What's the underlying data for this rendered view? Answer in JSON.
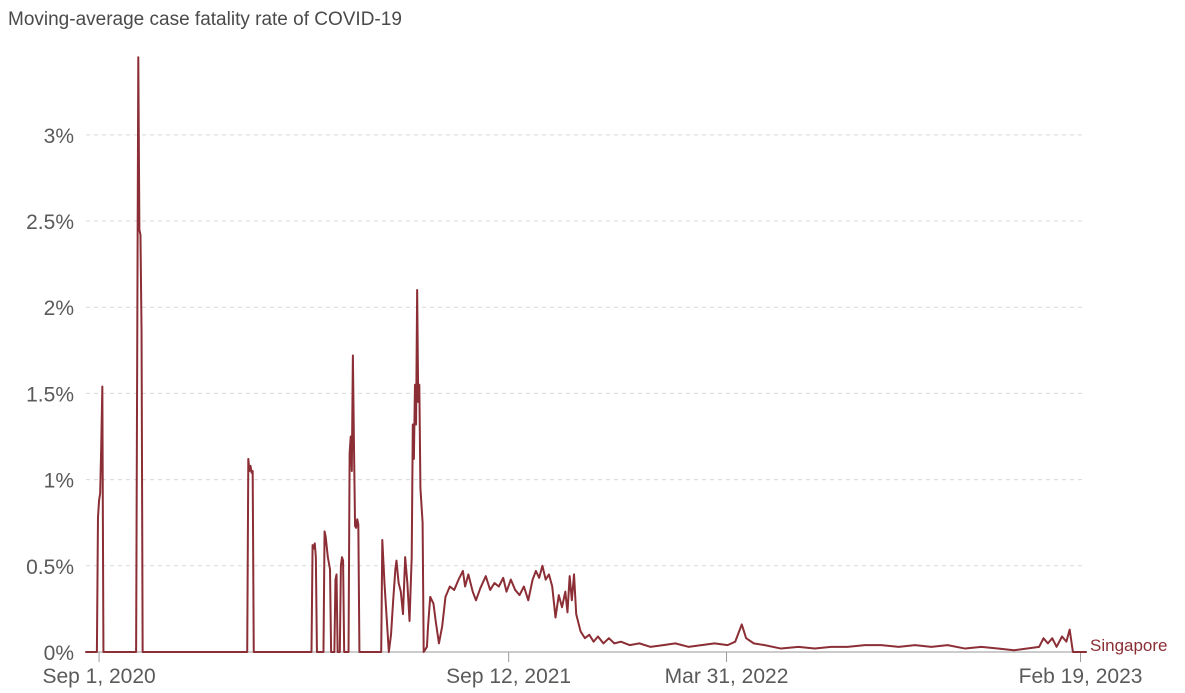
{
  "chart_data": {
    "type": "line",
    "title": "Moving-average case fatality rate of COVID-19",
    "xlabel": "",
    "ylabel": "",
    "x_range": [
      "2020-08-20",
      "2023-02-24"
    ],
    "ylim": [
      0,
      3.55
    ],
    "y_ticks": [
      0,
      0.5,
      1,
      1.5,
      2,
      2.5,
      3
    ],
    "y_tick_labels": [
      "0%",
      "0.5%",
      "1%",
      "1.5%",
      "2%",
      "2.5%",
      "3%"
    ],
    "x_ticks": [
      "2020-09-01",
      "2021-09-12",
      "2022-03-31",
      "2023-02-19"
    ],
    "x_tick_labels": [
      "Sep 1, 2020",
      "Sep 12, 2021",
      "Mar 31, 2022",
      "Feb 19, 2023"
    ],
    "grid": true,
    "colors": {
      "series": "#8b2e35",
      "grid": "#d9d9d9",
      "text": "#5a5a5a"
    },
    "series": [
      {
        "name": "Singapore",
        "points": [
          [
            "2020-08-20",
            0
          ],
          [
            "2020-08-30",
            0
          ],
          [
            "2020-08-31",
            0.78
          ],
          [
            "2020-09-01",
            0.88
          ],
          [
            "2020-09-02",
            0.92
          ],
          [
            "2020-09-03",
            1.2
          ],
          [
            "2020-09-04",
            1.54
          ],
          [
            "2020-09-05",
            0
          ],
          [
            "2020-10-05",
            0
          ],
          [
            "2020-10-07",
            3.45
          ],
          [
            "2020-10-08",
            2.45
          ],
          [
            "2020-10-09",
            2.42
          ],
          [
            "2020-10-10",
            1.85
          ],
          [
            "2020-10-11",
            0
          ],
          [
            "2021-01-15",
            0
          ],
          [
            "2021-01-16",
            1.12
          ],
          [
            "2021-01-17",
            1.05
          ],
          [
            "2021-01-18",
            1.08
          ],
          [
            "2021-01-19",
            1.04
          ],
          [
            "2021-01-20",
            1.05
          ],
          [
            "2021-01-21",
            0
          ],
          [
            "2021-03-15",
            0
          ],
          [
            "2021-03-16",
            0.62
          ],
          [
            "2021-03-17",
            0.6
          ],
          [
            "2021-03-18",
            0.63
          ],
          [
            "2021-03-19",
            0.55
          ],
          [
            "2021-03-20",
            0
          ],
          [
            "2021-03-26",
            0
          ],
          [
            "2021-03-27",
            0.7
          ],
          [
            "2021-03-28",
            0.67
          ],
          [
            "2021-03-30",
            0.55
          ],
          [
            "2021-04-01",
            0.48
          ],
          [
            "2021-04-02",
            0
          ],
          [
            "2021-04-05",
            0
          ],
          [
            "2021-04-06",
            0.42
          ],
          [
            "2021-04-07",
            0.45
          ],
          [
            "2021-04-08",
            0
          ],
          [
            "2021-04-10",
            0
          ],
          [
            "2021-04-11",
            0.5
          ],
          [
            "2021-04-12",
            0.55
          ],
          [
            "2021-04-13",
            0.53
          ],
          [
            "2021-04-14",
            0
          ],
          [
            "2021-04-18",
            0
          ],
          [
            "2021-04-19",
            1.15
          ],
          [
            "2021-04-20",
            1.25
          ],
          [
            "2021-04-21",
            1.05
          ],
          [
            "2021-04-22",
            1.72
          ],
          [
            "2021-04-23",
            1.2
          ],
          [
            "2021-04-24",
            0.73
          ],
          [
            "2021-04-25",
            0.72
          ],
          [
            "2021-04-26",
            0.77
          ],
          [
            "2021-04-27",
            0.74
          ],
          [
            "2021-04-28",
            0
          ],
          [
            "2021-05-18",
            0
          ],
          [
            "2021-05-19",
            0.65
          ],
          [
            "2021-05-21",
            0.4
          ],
          [
            "2021-05-23",
            0.2
          ],
          [
            "2021-05-25",
            0
          ],
          [
            "2021-05-27",
            0.1
          ],
          [
            "2021-05-29",
            0.3
          ],
          [
            "2021-05-31",
            0.48
          ],
          [
            "2021-06-01",
            0.53
          ],
          [
            "2021-06-03",
            0.4
          ],
          [
            "2021-06-05",
            0.35
          ],
          [
            "2021-06-07",
            0.22
          ],
          [
            "2021-06-09",
            0.55
          ],
          [
            "2021-06-11",
            0.4
          ],
          [
            "2021-06-13",
            0.18
          ],
          [
            "2021-06-15",
            0.55
          ],
          [
            "2021-06-16",
            1.32
          ],
          [
            "2021-06-17",
            1.12
          ],
          [
            "2021-06-18",
            1.55
          ],
          [
            "2021-06-19",
            1.32
          ],
          [
            "2021-06-20",
            2.1
          ],
          [
            "2021-06-21",
            1.45
          ],
          [
            "2021-06-22",
            1.55
          ],
          [
            "2021-06-23",
            0.95
          ],
          [
            "2021-06-24",
            0.85
          ],
          [
            "2021-06-25",
            0.75
          ],
          [
            "2021-06-26",
            0
          ],
          [
            "2021-06-29",
            0.03
          ],
          [
            "2021-06-30",
            0.15
          ],
          [
            "2021-07-02",
            0.32
          ],
          [
            "2021-07-05",
            0.28
          ],
          [
            "2021-07-07",
            0.18
          ],
          [
            "2021-07-10",
            0.05
          ],
          [
            "2021-07-13",
            0.15
          ],
          [
            "2021-07-16",
            0.32
          ],
          [
            "2021-07-20",
            0.38
          ],
          [
            "2021-07-24",
            0.36
          ],
          [
            "2021-07-28",
            0.42
          ],
          [
            "2021-08-01",
            0.47
          ],
          [
            "2021-08-03",
            0.38
          ],
          [
            "2021-08-06",
            0.45
          ],
          [
            "2021-08-10",
            0.35
          ],
          [
            "2021-08-13",
            0.3
          ],
          [
            "2021-08-17",
            0.37
          ],
          [
            "2021-08-22",
            0.44
          ],
          [
            "2021-08-26",
            0.36
          ],
          [
            "2021-08-30",
            0.4
          ],
          [
            "2021-09-03",
            0.38
          ],
          [
            "2021-09-07",
            0.43
          ],
          [
            "2021-09-10",
            0.35
          ],
          [
            "2021-09-14",
            0.42
          ],
          [
            "2021-09-18",
            0.36
          ],
          [
            "2021-09-22",
            0.33
          ],
          [
            "2021-09-26",
            0.38
          ],
          [
            "2021-09-30",
            0.3
          ],
          [
            "2021-10-04",
            0.42
          ],
          [
            "2021-10-07",
            0.47
          ],
          [
            "2021-10-10",
            0.43
          ],
          [
            "2021-10-13",
            0.5
          ],
          [
            "2021-10-16",
            0.42
          ],
          [
            "2021-10-19",
            0.45
          ],
          [
            "2021-10-22",
            0.38
          ],
          [
            "2021-10-25",
            0.2
          ],
          [
            "2021-10-28",
            0.33
          ],
          [
            "2021-10-31",
            0.26
          ],
          [
            "2021-11-03",
            0.35
          ],
          [
            "2021-11-05",
            0.23
          ],
          [
            "2021-11-07",
            0.44
          ],
          [
            "2021-11-09",
            0.3
          ],
          [
            "2021-11-11",
            0.45
          ],
          [
            "2021-11-13",
            0.22
          ],
          [
            "2021-11-17",
            0.12
          ],
          [
            "2021-11-21",
            0.08
          ],
          [
            "2021-11-25",
            0.1
          ],
          [
            "2021-11-29",
            0.06
          ],
          [
            "2021-12-03",
            0.09
          ],
          [
            "2021-12-08",
            0.05
          ],
          [
            "2021-12-13",
            0.08
          ],
          [
            "2021-12-18",
            0.05
          ],
          [
            "2021-12-24",
            0.06
          ],
          [
            "2022-01-01",
            0.04
          ],
          [
            "2022-01-10",
            0.05
          ],
          [
            "2022-01-20",
            0.03
          ],
          [
            "2022-02-01",
            0.04
          ],
          [
            "2022-02-12",
            0.05
          ],
          [
            "2022-02-24",
            0.03
          ],
          [
            "2022-03-08",
            0.04
          ],
          [
            "2022-03-20",
            0.05
          ],
          [
            "2022-04-01",
            0.04
          ],
          [
            "2022-04-08",
            0.06
          ],
          [
            "2022-04-14",
            0.16
          ],
          [
            "2022-04-18",
            0.08
          ],
          [
            "2022-04-25",
            0.05
          ],
          [
            "2022-05-05",
            0.04
          ],
          [
            "2022-05-20",
            0.02
          ],
          [
            "2022-06-05",
            0.03
          ],
          [
            "2022-06-20",
            0.02
          ],
          [
            "2022-07-05",
            0.03
          ],
          [
            "2022-07-20",
            0.03
          ],
          [
            "2022-08-05",
            0.04
          ],
          [
            "2022-08-20",
            0.04
          ],
          [
            "2022-09-05",
            0.03
          ],
          [
            "2022-09-20",
            0.04
          ],
          [
            "2022-10-05",
            0.03
          ],
          [
            "2022-10-20",
            0.04
          ],
          [
            "2022-11-05",
            0.02
          ],
          [
            "2022-11-20",
            0.03
          ],
          [
            "2022-12-05",
            0.02
          ],
          [
            "2022-12-20",
            0.01
          ],
          [
            "2023-01-01",
            0.02
          ],
          [
            "2023-01-12",
            0.03
          ],
          [
            "2023-01-16",
            0.08
          ],
          [
            "2023-01-20",
            0.05
          ],
          [
            "2023-01-24",
            0.08
          ],
          [
            "2023-01-28",
            0.03
          ],
          [
            "2023-02-02",
            0.09
          ],
          [
            "2023-02-06",
            0.06
          ],
          [
            "2023-02-09",
            0.13
          ],
          [
            "2023-02-12",
            0.0
          ],
          [
            "2023-02-24",
            0.0
          ]
        ]
      }
    ]
  }
}
